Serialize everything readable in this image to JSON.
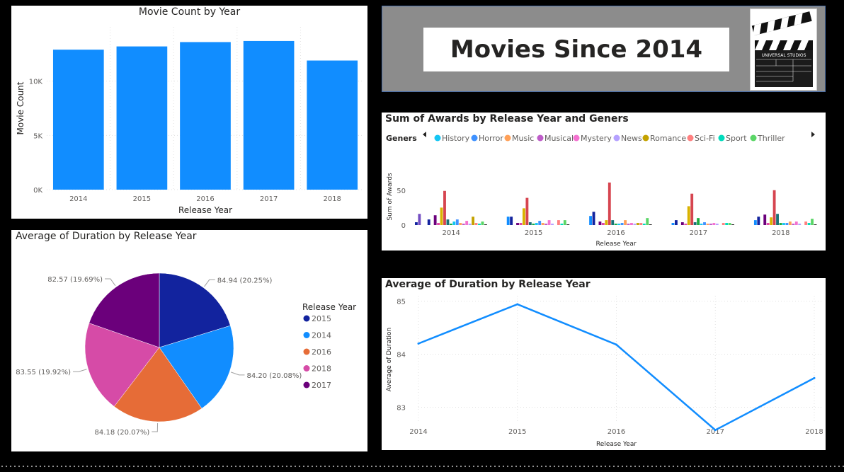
{
  "banner": {
    "title": "Movies Since 2014",
    "clapper_label": "UNIVERSAL STUDIOS"
  },
  "bar_panel": {
    "title": "Movie Count by Year"
  },
  "pie_panel": {
    "title": "Average of Duration by Release Year"
  },
  "awards_panel": {
    "title": "Sum of Awards by Release Year and Geners"
  },
  "line_panel": {
    "title": "Average of Duration by Release Year"
  },
  "colors": {
    "bar": "#118DFF",
    "line": "#118DFF",
    "banner_bg": "#8c8c8c",
    "banner_border": "#4a6ea8"
  },
  "chart_data": [
    {
      "id": "movie-count",
      "type": "bar",
      "title": "Movie Count by Year",
      "xlabel": "Release Year",
      "ylabel": "Movie Count",
      "categories": [
        "2014",
        "2015",
        "2016",
        "2017",
        "2018"
      ],
      "values": [
        12900,
        13200,
        13600,
        13700,
        11900
      ],
      "ylim": [
        0,
        15000
      ],
      "yticks": [
        {
          "v": 0,
          "label": "0K"
        },
        {
          "v": 5000,
          "label": "5K"
        },
        {
          "v": 10000,
          "label": "10K"
        }
      ],
      "grid": true
    },
    {
      "id": "duration-pie",
      "type": "pie",
      "title": "Average of Duration by Release Year",
      "legend_title": "Release Year",
      "legend_position": "right",
      "slices": [
        {
          "label": "2015",
          "value": 84.94,
          "text": "84.94 (20.25%)",
          "color": "#12239E"
        },
        {
          "label": "2014",
          "value": 84.2,
          "text": "84.20 (20.08%)",
          "color": "#118DFF"
        },
        {
          "label": "2016",
          "value": 84.18,
          "text": "84.18 (20.07%)",
          "color": "#E66C37"
        },
        {
          "label": "2018",
          "value": 83.55,
          "text": "83.55 (19.92%)",
          "color": "#D64BA7"
        },
        {
          "label": "2017",
          "value": 82.57,
          "text": "82.57 (19.69%)",
          "color": "#6B007B"
        }
      ]
    },
    {
      "id": "awards",
      "type": "bar",
      "title": "Sum of Awards by Release Year and Geners",
      "xlabel": "Release Year",
      "ylabel": "Sum of Awards",
      "legend_title": "Geners",
      "legend_position": "top",
      "legend_visible": [
        "History",
        "Horror",
        "Music",
        "Musical",
        "Mystery",
        "News",
        "Romance",
        "Sci-Fi",
        "Sport",
        "Thriller"
      ],
      "categories": [
        "2014",
        "2015",
        "2016",
        "2017",
        "2018"
      ],
      "ylim": [
        0,
        65
      ],
      "yticks": [
        {
          "v": 0,
          "label": "0"
        },
        {
          "v": 50,
          "label": "50"
        }
      ],
      "series": [
        {
          "color": "#12239E",
          "values": [
            4,
            0,
            0,
            0,
            0
          ]
        },
        {
          "color": "#744EC2",
          "values": [
            16,
            0,
            0,
            0,
            0
          ]
        },
        {
          "color": "#D9B300",
          "values": [
            0,
            0,
            0,
            0,
            0
          ]
        },
        {
          "color": "#118DFF",
          "values": [
            0,
            12,
            13,
            3,
            7
          ]
        },
        {
          "color": "#12239E",
          "values": [
            8,
            12,
            19,
            7,
            12
          ]
        },
        {
          "color": "#E66C37",
          "values": [
            0,
            0,
            0,
            0,
            0
          ]
        },
        {
          "color": "#6B007B",
          "values": [
            14,
            3,
            5,
            4,
            15
          ]
        },
        {
          "color": "#E044A7",
          "values": [
            3,
            3,
            3,
            2,
            3
          ]
        },
        {
          "color": "#D9B300",
          "values": [
            25,
            24,
            7,
            27,
            11
          ]
        },
        {
          "color": "#D64550",
          "values": [
            49,
            39,
            61,
            45,
            50
          ]
        },
        {
          "color": "#197278",
          "values": [
            8,
            4,
            7,
            4,
            16
          ]
        },
        {
          "color": "#1AAB40",
          "values": [
            2,
            2,
            2,
            10,
            3
          ]
        },
        {
          "color": "#15C6F4",
          "values": [
            5,
            3,
            2,
            2,
            3
          ]
        },
        {
          "color": "#4092FF",
          "values": [
            8,
            6,
            3,
            4,
            3
          ]
        },
        {
          "color": "#FFA058",
          "values": [
            3,
            3,
            7,
            2,
            5
          ]
        },
        {
          "color": "#BE5DC9",
          "values": [
            2,
            2,
            2,
            2,
            2
          ]
        },
        {
          "color": "#F472D0",
          "values": [
            6,
            7,
            3,
            3,
            5
          ]
        },
        {
          "color": "#B5A1FF",
          "values": [
            2,
            2,
            2,
            2,
            2
          ]
        },
        {
          "color": "#C4A200",
          "values": [
            12,
            0,
            3,
            0,
            0
          ]
        },
        {
          "color": "#FF8080",
          "values": [
            3,
            7,
            3,
            3,
            5
          ]
        },
        {
          "color": "#00DBBC",
          "values": [
            2,
            2,
            2,
            3,
            3
          ]
        },
        {
          "color": "#5BD667",
          "values": [
            5,
            7,
            10,
            3,
            9
          ]
        },
        {
          "color": "#252423",
          "values": [
            1,
            1,
            1,
            1,
            1
          ]
        }
      ]
    },
    {
      "id": "duration-line",
      "type": "line",
      "title": "Average of Duration by Release Year",
      "xlabel": "Release Year",
      "ylabel": "Average of Duration",
      "categories": [
        "2014",
        "2015",
        "2016",
        "2017",
        "2018"
      ],
      "values": [
        84.2,
        84.94,
        84.18,
        82.57,
        83.55
      ],
      "ylim": [
        82.7,
        85.1
      ],
      "yticks": [
        {
          "v": 83,
          "label": "83"
        },
        {
          "v": 84,
          "label": "84"
        },
        {
          "v": 85,
          "label": "85"
        }
      ],
      "grid": true
    }
  ],
  "genre_legend_colors": [
    "#15C6F4",
    "#4092FF",
    "#FFA058",
    "#BE5DC9",
    "#F472D0",
    "#B5A1FF",
    "#C4A200",
    "#FF8080",
    "#00DBBC",
    "#5BD667"
  ]
}
